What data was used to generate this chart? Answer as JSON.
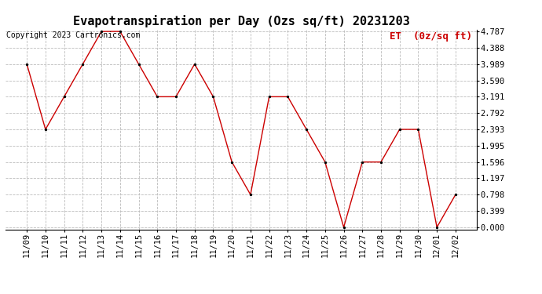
{
  "title": "Evapotranspiration per Day (Ozs sq/ft) 20231203",
  "copyright": "Copyright 2023 Cartronics.com",
  "legend_label": "ET  (0z/sq ft)",
  "dates": [
    "11/09",
    "11/10",
    "11/11",
    "11/12",
    "11/13",
    "11/14",
    "11/15",
    "11/16",
    "11/17",
    "11/18",
    "11/19",
    "11/20",
    "11/21",
    "11/22",
    "11/23",
    "11/24",
    "11/25",
    "11/26",
    "11/27",
    "11/28",
    "11/29",
    "11/30",
    "12/01",
    "12/02"
  ],
  "values": [
    3.989,
    2.393,
    3.191,
    3.989,
    4.787,
    4.787,
    3.989,
    3.191,
    3.191,
    3.989,
    3.191,
    1.596,
    0.798,
    3.191,
    3.191,
    2.393,
    1.596,
    0.0,
    1.596,
    1.596,
    2.393,
    2.393,
    0.0,
    0.798
  ],
  "line_color": "#cc0000",
  "marker_color": "#000000",
  "background_color": "#ffffff",
  "grid_color": "#bbbbbb",
  "yticks": [
    0.0,
    0.399,
    0.798,
    1.197,
    1.596,
    1.995,
    2.393,
    2.792,
    3.191,
    3.59,
    3.989,
    4.388,
    4.787
  ],
  "ylim": [
    0.0,
    4.787
  ],
  "title_fontsize": 11,
  "copyright_fontsize": 7,
  "legend_fontsize": 9,
  "tick_fontsize": 7.5
}
